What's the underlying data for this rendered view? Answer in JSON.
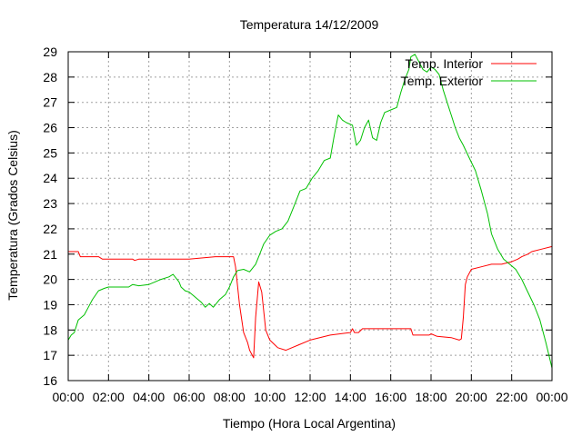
{
  "chart_data": {
    "type": "line",
    "title": "Temperatura 14/12/2009",
    "xlabel": "Tiempo (Hora Local Argentina)",
    "ylabel": "Temperatura (Grados Celsius)",
    "xlim": [
      0,
      24
    ],
    "ylim": [
      16,
      29
    ],
    "x_tick_values": [
      0,
      2,
      4,
      6,
      8,
      10,
      12,
      14,
      16,
      18,
      20,
      22,
      24
    ],
    "x_tick_labels": [
      "00:00",
      "02:00",
      "04:00",
      "06:00",
      "08:00",
      "10:00",
      "12:00",
      "14:00",
      "16:00",
      "18:00",
      "20:00",
      "22:00",
      "00:00"
    ],
    "y_ticks": [
      16,
      17,
      18,
      19,
      20,
      21,
      22,
      23,
      24,
      25,
      26,
      27,
      28,
      29
    ],
    "grid": true,
    "legend_position": "top-right",
    "series": [
      {
        "name": "Temp. Interior",
        "color": "#ff0000",
        "x": [
          0,
          0.5,
          0.6,
          1.5,
          1.7,
          3.2,
          3.3,
          3.5,
          4,
          6,
          7.3,
          8.2,
          8.3,
          8.5,
          8.7,
          8.9,
          9,
          9.2,
          9.3,
          9.45,
          9.6,
          9.8,
          10,
          10.4,
          10.8,
          11.4,
          12,
          13,
          14,
          14.1,
          14.2,
          14.4,
          14.6,
          15,
          16,
          17,
          17.1,
          17.5,
          17.9,
          18,
          18.3,
          19,
          19.4,
          19.5,
          19.6,
          19.7,
          19.8,
          20,
          20.5,
          21,
          21.5,
          22,
          22.3,
          22.5,
          22.8,
          23,
          23.5,
          24
        ],
        "y": [
          21.1,
          21.1,
          20.9,
          20.9,
          20.8,
          20.8,
          20.75,
          20.8,
          20.8,
          20.8,
          20.9,
          20.9,
          20.5,
          19,
          17.9,
          17.5,
          17.2,
          16.9,
          18.5,
          19.9,
          19.5,
          18,
          17.6,
          17.3,
          17.2,
          17.4,
          17.6,
          17.8,
          17.9,
          18.05,
          17.9,
          17.9,
          18.05,
          18.05,
          18.05,
          18.05,
          17.8,
          17.8,
          17.8,
          17.85,
          17.75,
          17.7,
          17.6,
          17.65,
          18.5,
          19.8,
          20.1,
          20.4,
          20.5,
          20.6,
          20.6,
          20.7,
          20.8,
          20.9,
          21,
          21.1,
          21.2,
          21.3
        ]
      },
      {
        "name": "Temp. Exterior",
        "color": "#00c000",
        "x": [
          0,
          0.15,
          0.3,
          0.5,
          0.8,
          1,
          1.2,
          1.5,
          1.8,
          2,
          2.5,
          3,
          3.2,
          3.5,
          4,
          4.3,
          4.6,
          5,
          5.2,
          5.5,
          5.6,
          5.8,
          6,
          6.3,
          6.6,
          6.8,
          7,
          7.2,
          7.5,
          7.8,
          8,
          8.2,
          8.4,
          8.7,
          9,
          9.3,
          9.5,
          9.7,
          10,
          10.3,
          10.6,
          10.9,
          11.2,
          11.5,
          11.8,
          12.1,
          12.4,
          12.7,
          13,
          13.2,
          13.4,
          13.6,
          13.8,
          14.1,
          14.3,
          14.5,
          14.7,
          14.9,
          15.1,
          15.3,
          15.5,
          15.7,
          16,
          16.3,
          16.5,
          16.7,
          16.9,
          17,
          17.2,
          17.4,
          17.6,
          17.8,
          18,
          18.2,
          18.4,
          18.6,
          18.8,
          19,
          19.2,
          19.4,
          19.6,
          19.9,
          20.2,
          20.5,
          20.8,
          21,
          21.3,
          21.6,
          21.9,
          22.2,
          22.5,
          22.8,
          23.1,
          23.4,
          23.7,
          24
        ],
        "y": [
          17.6,
          17.8,
          17.9,
          18.4,
          18.6,
          18.9,
          19.2,
          19.55,
          19.65,
          19.7,
          19.7,
          19.7,
          19.8,
          19.75,
          19.8,
          19.9,
          20,
          20.1,
          20.2,
          19.9,
          19.7,
          19.55,
          19.5,
          19.3,
          19.1,
          18.9,
          19.05,
          18.9,
          19.2,
          19.4,
          19.7,
          20.1,
          20.35,
          20.4,
          20.3,
          20.6,
          21,
          21.4,
          21.75,
          21.9,
          22,
          22.3,
          22.9,
          23.5,
          23.6,
          24,
          24.3,
          24.7,
          24.8,
          25.7,
          26.5,
          26.3,
          26.2,
          26.1,
          25.3,
          25.5,
          26,
          26.3,
          25.6,
          25.5,
          26.2,
          26.6,
          26.7,
          26.8,
          27.4,
          27.9,
          28.3,
          28.8,
          28.9,
          28.6,
          28.3,
          28.2,
          28.4,
          28.3,
          28.1,
          27.5,
          27,
          26.5,
          26,
          25.6,
          25.3,
          24.8,
          24.3,
          23.5,
          22.6,
          21.8,
          21.2,
          20.8,
          20.6,
          20.4,
          20,
          19.5,
          19,
          18.4,
          17.5,
          16.5
        ]
      }
    ]
  }
}
